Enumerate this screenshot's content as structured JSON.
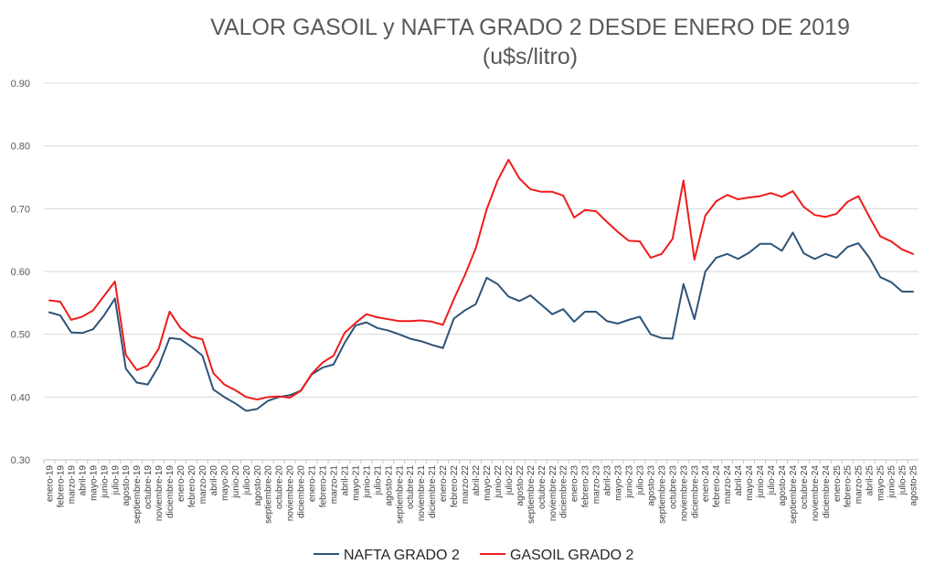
{
  "chart_data": {
    "type": "line",
    "title": "VALOR GASOIL y NAFTA GRADO 2 DESDE ENERO DE 2019",
    "subtitle": "(u$s/litro)",
    "xlabel": "",
    "ylabel": "",
    "ylim": [
      0.3,
      0.9
    ],
    "yticks": [
      "0.30",
      "0.40",
      "0.50",
      "0.60",
      "0.70",
      "0.80",
      "0.90"
    ],
    "grid": true,
    "legend": "bottom",
    "categories": [
      "enero-19",
      "febrero-19",
      "marzo-19",
      "abril-19",
      "mayo-19",
      "junio-19",
      "julio-19",
      "agosto-19",
      "septiembre-19",
      "octubre-19",
      "noviembre-19",
      "diciembre-19",
      "enero-20",
      "febrero-20",
      "marzo-20",
      "abril-20",
      "mayo-20",
      "junio-20",
      "julio-20",
      "agosto-20",
      "septiembre-20",
      "octubre-20",
      "noviembre-20",
      "diciembre-20",
      "enero-21",
      "febrero-21",
      "marzo-21",
      "abril-21",
      "mayo-21",
      "junio-21",
      "julio-21",
      "agosto-21",
      "septiembre-21",
      "octubre-21",
      "noviembre-21",
      "diciembre-21",
      "enero-22",
      "febrero-22",
      "marzo-22",
      "abril-22",
      "mayo-22",
      "junio-22",
      "julio-22",
      "agosto-22",
      "septiembre-22",
      "octubre-22",
      "noviembre-22",
      "diciembre-22",
      "enero-23",
      "febrero-23",
      "marzo-23",
      "abril-23",
      "mayo-23",
      "junio-23",
      "julio-23",
      "agosto-23",
      "septiembre-23",
      "octubre-23",
      "noviembre-23",
      "diciembre-23",
      "enero-24",
      "febrero-24",
      "marzo-24",
      "abril-24",
      "mayo-24",
      "junio-24",
      "julio-24",
      "agosto-24",
      "septiembre-24",
      "octubre-24",
      "noviembre-24",
      "diciembre-24",
      "enero-25",
      "febrero-25",
      "marzo-25",
      "abril-25",
      "mayo-25",
      "junio-25",
      "julio-25",
      "agosto-25"
    ],
    "series": [
      {
        "name": "NAFTA GRADO 2",
        "color": "#2e5478",
        "values": [
          0.535,
          0.53,
          0.503,
          0.502,
          0.508,
          0.53,
          0.557,
          0.445,
          0.423,
          0.42,
          0.449,
          0.494,
          0.492,
          0.48,
          0.466,
          0.412,
          0.4,
          0.39,
          0.378,
          0.381,
          0.394,
          0.4,
          0.403,
          0.41,
          0.436,
          0.447,
          0.452,
          0.486,
          0.514,
          0.519,
          0.51,
          0.506,
          0.5,
          0.493,
          0.489,
          0.483,
          0.478,
          0.525,
          0.538,
          0.548,
          0.59,
          0.58,
          0.56,
          0.553,
          0.562,
          0.547,
          0.532,
          0.54,
          0.52,
          0.536,
          0.536,
          0.521,
          0.517,
          0.523,
          0.528,
          0.5,
          0.494,
          0.493,
          0.58,
          0.524,
          0.6,
          0.622,
          0.628,
          0.62,
          0.63,
          0.644,
          0.644,
          0.633,
          0.662,
          0.629,
          0.62,
          0.628,
          0.622,
          0.639,
          0.645,
          0.622,
          0.591,
          0.583,
          0.568,
          0.568
        ]
      },
      {
        "name": "GASOIL GRADO 2",
        "color": "#ee1c1c",
        "values": [
          0.554,
          0.552,
          0.523,
          0.528,
          0.538,
          0.561,
          0.584,
          0.467,
          0.443,
          0.45,
          0.477,
          0.536,
          0.51,
          0.496,
          0.492,
          0.438,
          0.42,
          0.411,
          0.4,
          0.396,
          0.4,
          0.401,
          0.399,
          0.41,
          0.437,
          0.455,
          0.466,
          0.502,
          0.518,
          0.532,
          0.527,
          0.524,
          0.521,
          0.521,
          0.522,
          0.52,
          0.515,
          0.556,
          0.594,
          0.637,
          0.699,
          0.745,
          0.778,
          0.748,
          0.731,
          0.727,
          0.727,
          0.721,
          0.686,
          0.698,
          0.696,
          0.679,
          0.663,
          0.649,
          0.648,
          0.622,
          0.628,
          0.652,
          0.745,
          0.619,
          0.689,
          0.712,
          0.722,
          0.715,
          0.718,
          0.72,
          0.725,
          0.719,
          0.728,
          0.703,
          0.69,
          0.687,
          0.692,
          0.711,
          0.72,
          0.687,
          0.656,
          0.648,
          0.635,
          0.628
        ]
      }
    ]
  }
}
